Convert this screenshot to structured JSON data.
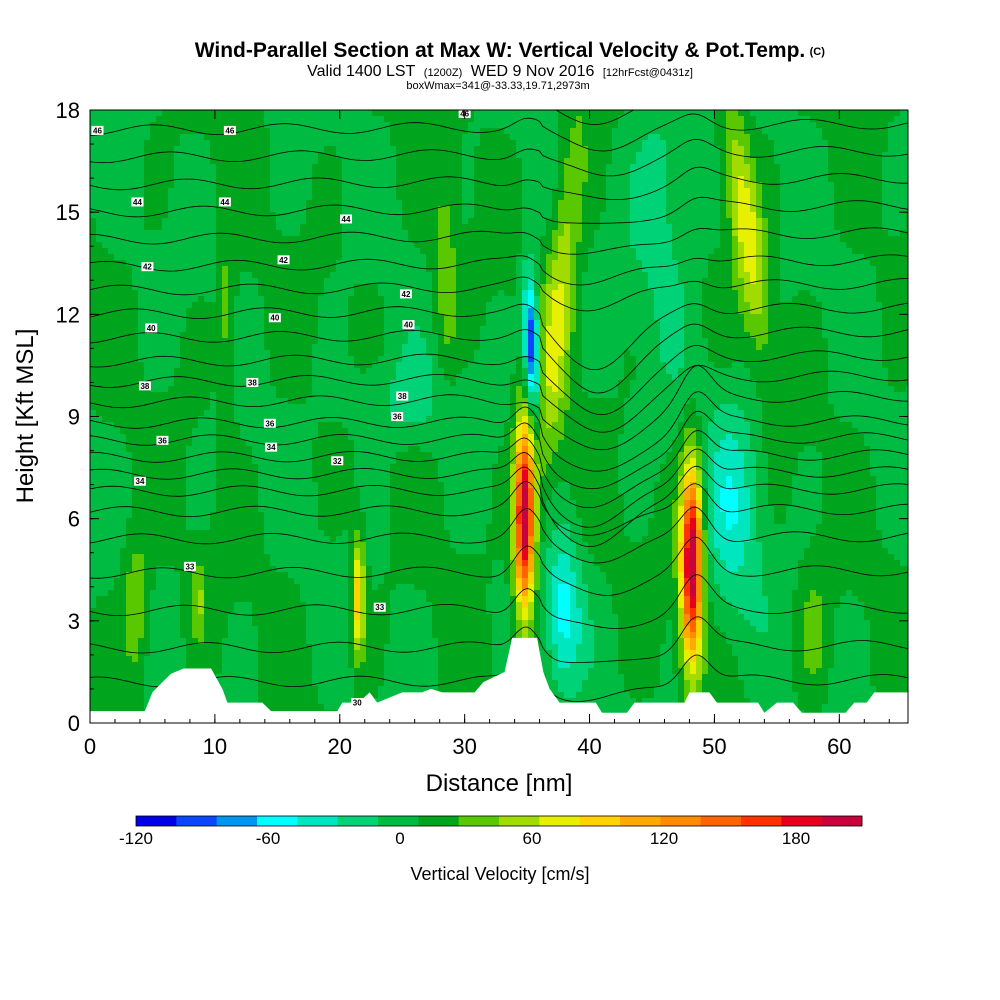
{
  "title": "Wind-Parallel Section at Max W: Vertical Velocity & Pot.Temp.",
  "title_tag": "(C)",
  "subtitle_parts": [
    "Valid 1400 LST",
    "(1200Z)",
    "WED 9 Nov 2016",
    "[12hrFcst@0431z]"
  ],
  "boxinfo": "boxWmax=341@-33.33,19.71,2973m",
  "chart_data": {
    "type": "heatmap",
    "title": "Wind-Parallel Section at Max W: Vertical Velocity & Pot.Temp.",
    "xlabel": "Distance [nm]",
    "ylabel": "Height [Kft MSL]",
    "xlim": [
      0,
      65.5
    ],
    "ylim": [
      0,
      18
    ],
    "xticks": [
      0,
      10,
      20,
      30,
      40,
      50,
      60
    ],
    "yticks": [
      0,
      3,
      6,
      9,
      12,
      15,
      18
    ],
    "colorbar": {
      "label": "Vertical Velocity [cm/s]",
      "tick_labels": [
        "-120",
        "-60",
        "0",
        "60",
        "120",
        "180"
      ],
      "tick_values": [
        -120,
        -60,
        0,
        60,
        120,
        180
      ],
      "range": [
        -120,
        210
      ],
      "colors": [
        "#0000e6",
        "#0a46ff",
        "#0096f0",
        "#00ffff",
        "#00e6be",
        "#00d278",
        "#00bb42",
        "#00a51e",
        "#5ac800",
        "#a0dc00",
        "#e6f000",
        "#ffd200",
        "#ffaa00",
        "#ff8c00",
        "#ff6400",
        "#ff3200",
        "#e6001e",
        "#c8003c"
      ]
    },
    "theta_contour_labels": [
      {
        "value": "46",
        "x": 0.6,
        "z": 17.4
      },
      {
        "value": "46",
        "x": 11.2,
        "z": 17.4
      },
      {
        "value": "46",
        "x": 30.0,
        "z": 17.9
      },
      {
        "value": "44",
        "x": 3.8,
        "z": 15.3
      },
      {
        "value": "44",
        "x": 10.8,
        "z": 15.3
      },
      {
        "value": "44",
        "x": 20.5,
        "z": 14.8
      },
      {
        "value": "42",
        "x": 4.6,
        "z": 13.4
      },
      {
        "value": "42",
        "x": 15.5,
        "z": 13.6
      },
      {
        "value": "42",
        "x": 25.3,
        "z": 12.6
      },
      {
        "value": "40",
        "x": 4.9,
        "z": 11.6
      },
      {
        "value": "40",
        "x": 14.8,
        "z": 11.9
      },
      {
        "value": "40",
        "x": 25.5,
        "z": 11.7
      },
      {
        "value": "38",
        "x": 4.4,
        "z": 9.9
      },
      {
        "value": "38",
        "x": 13.0,
        "z": 10.0
      },
      {
        "value": "38",
        "x": 25.0,
        "z": 9.6
      },
      {
        "value": "36",
        "x": 5.8,
        "z": 8.3
      },
      {
        "value": "36",
        "x": 14.4,
        "z": 8.8
      },
      {
        "value": "36",
        "x": 24.6,
        "z": 9.0
      },
      {
        "value": "34",
        "x": 4.0,
        "z": 7.1
      },
      {
        "value": "34",
        "x": 14.5,
        "z": 8.1
      },
      {
        "value": "33",
        "x": 8.0,
        "z": 4.6
      },
      {
        "value": "33",
        "x": 23.2,
        "z": 3.4
      },
      {
        "value": "32",
        "x": 19.8,
        "z": 7.7
      },
      {
        "value": "30",
        "x": 21.4,
        "z": 0.6
      }
    ]
  }
}
